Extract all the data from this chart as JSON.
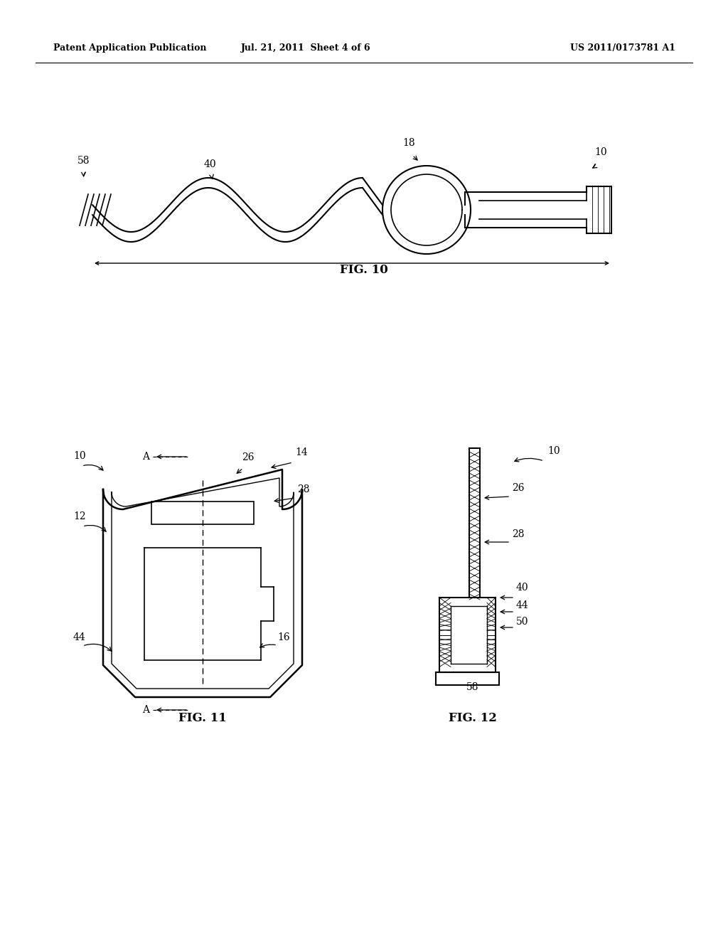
{
  "header_left": "Patent Application Publication",
  "header_mid": "Jul. 21, 2011  Sheet 4 of 6",
  "header_right": "US 2011/0173781 A1",
  "fig10_label": "FIG. 10",
  "fig11_label": "FIG. 11",
  "fig12_label": "FIG. 12",
  "bg_color": "#ffffff",
  "line_color": "#000000"
}
